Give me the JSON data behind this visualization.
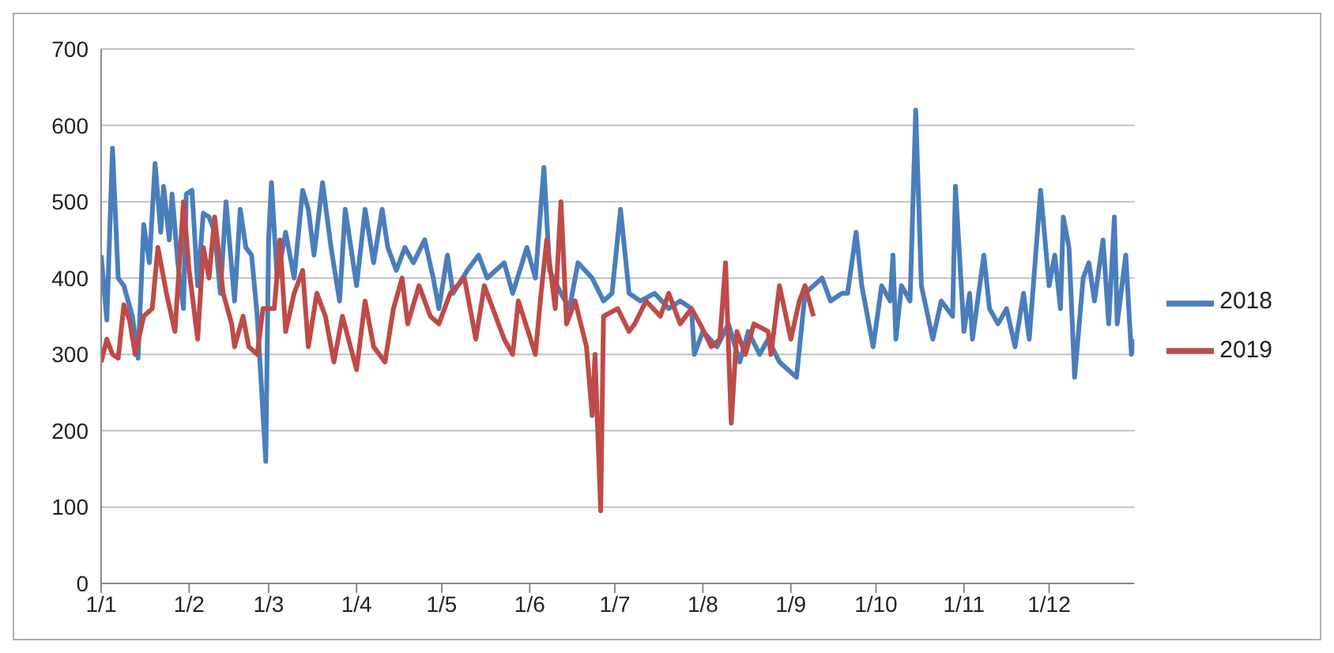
{
  "chart_data": {
    "type": "line",
    "legend": "right",
    "grid": "y",
    "marker": "none",
    "line_style": "solid",
    "ylim": [
      0,
      700
    ],
    "yticks": [
      0,
      100,
      200,
      300,
      400,
      500,
      600,
      700
    ],
    "xlim": [
      "--01-01",
      "--12-31"
    ],
    "xticks": [
      {
        "value": "--01-01",
        "label": "1/1"
      },
      {
        "value": "--02-01",
        "label": "1/2"
      },
      {
        "value": "--03-01",
        "label": "1/3"
      },
      {
        "value": "--04-01",
        "label": "1/4"
      },
      {
        "value": "--05-01",
        "label": "1/5"
      },
      {
        "value": "--06-01",
        "label": "1/6"
      },
      {
        "value": "--07-01",
        "label": "1/7"
      },
      {
        "value": "--08-01",
        "label": "1/8"
      },
      {
        "value": "--09-01",
        "label": "1/9"
      },
      {
        "value": "--10-01",
        "label": "1/10"
      },
      {
        "value": "--11-01",
        "label": "1/11"
      },
      {
        "value": "--12-01",
        "label": "1/12"
      }
    ],
    "series": [
      {
        "name": "2018",
        "color": "#4a7ebb",
        "x": [
          "--01-01",
          "--01-03",
          "--01-05",
          "--01-07",
          "--01-09",
          "--01-12",
          "--01-14",
          "--01-16",
          "--01-18",
          "--01-20",
          "--01-22",
          "--01-23",
          "--01-25",
          "--01-26",
          "--01-28",
          "--01-30",
          "--01-31",
          "--02-02",
          "--02-04",
          "--02-06",
          "--02-08",
          "--02-10",
          "--02-12",
          "--02-14",
          "--02-17",
          "--02-19",
          "--02-21",
          "--02-23",
          "--02-25",
          "--02-28",
          "--03-01",
          "--03-02",
          "--03-04",
          "--03-07",
          "--03-10",
          "--03-13",
          "--03-15",
          "--03-17",
          "--03-20",
          "--03-23",
          "--03-26",
          "--03-28",
          "--04-01",
          "--04-04",
          "--04-07",
          "--04-10",
          "--04-12",
          "--04-15",
          "--04-18",
          "--04-21",
          "--04-25",
          "--04-28",
          "--04-30",
          "--05-03",
          "--05-05",
          "--05-10",
          "--05-14",
          "--05-17",
          "--05-23",
          "--05-26",
          "--05-31",
          "--06-03",
          "--06-06",
          "--06-08",
          "--06-12",
          "--06-15",
          "--06-18",
          "--06-23",
          "--06-27",
          "--06-30",
          "--07-03",
          "--07-06",
          "--07-10",
          "--07-15",
          "--07-20",
          "--07-24",
          "--07-28",
          "--07-29",
          "--08-01",
          "--08-06",
          "--08-10",
          "--08-14",
          "--08-17",
          "--08-21",
          "--08-24",
          "--08-28",
          "--09-03",
          "--09-06",
          "--09-12",
          "--09-15",
          "--09-19",
          "--09-21",
          "--09-24",
          "--09-26",
          "--09-30",
          "--10-03",
          "--10-06",
          "--10-07",
          "--10-08",
          "--10-10",
          "--10-13",
          "--10-15",
          "--10-17",
          "--10-21",
          "--10-24",
          "--10-28",
          "--10-29",
          "--11-01",
          "--11-03",
          "--11-04",
          "--11-08",
          "--11-10",
          "--11-13",
          "--11-16",
          "--11-19",
          "--11-22",
          "--11-24",
          "--11-28",
          "--12-01",
          "--12-03",
          "--12-05",
          "--12-06",
          "--12-08",
          "--12-10",
          "--12-13",
          "--12-15",
          "--12-17",
          "--12-20",
          "--12-22",
          "--12-24",
          "--12-25",
          "--12-28",
          "--12-30",
          "--12-31"
        ],
        "values": [
          430,
          345,
          570,
          400,
          390,
          350,
          295,
          470,
          420,
          550,
          460,
          520,
          450,
          510,
          420,
          360,
          510,
          515,
          390,
          485,
          480,
          460,
          380,
          500,
          370,
          490,
          440,
          430,
          350,
          160,
          450,
          525,
          400,
          460,
          400,
          515,
          490,
          430,
          525,
          440,
          370,
          490,
          390,
          490,
          420,
          490,
          440,
          410,
          440,
          420,
          450,
          400,
          360,
          430,
          380,
          410,
          430,
          400,
          420,
          380,
          440,
          400,
          545,
          410,
          380,
          360,
          420,
          400,
          370,
          380,
          490,
          380,
          370,
          380,
          360,
          370,
          360,
          300,
          330,
          310,
          340,
          290,
          330,
          300,
          320,
          290,
          270,
          380,
          400,
          370,
          380,
          380,
          460,
          390,
          310,
          390,
          370,
          430,
          320,
          390,
          370,
          620,
          390,
          320,
          370,
          350,
          520,
          330,
          380,
          320,
          430,
          360,
          340,
          360,
          310,
          380,
          320,
          515,
          390,
          430,
          360,
          480,
          440,
          270,
          400,
          420,
          370,
          450,
          340,
          480,
          340,
          430,
          300,
          320
        ]
      },
      {
        "name": "2019",
        "color": "#be4b48",
        "x": [
          "--01-01",
          "--01-03",
          "--01-05",
          "--01-07",
          "--01-09",
          "--01-11",
          "--01-13",
          "--01-16",
          "--01-19",
          "--01-21",
          "--01-24",
          "--01-27",
          "--01-30",
          "--02-01",
          "--02-04",
          "--02-06",
          "--02-08",
          "--02-10",
          "--02-13",
          "--02-16",
          "--02-17",
          "--02-20",
          "--02-22",
          "--02-25",
          "--02-27",
          "--03-03",
          "--03-05",
          "--03-07",
          "--03-10",
          "--03-13",
          "--03-15",
          "--03-18",
          "--03-21",
          "--03-24",
          "--03-27",
          "--04-01",
          "--04-04",
          "--04-07",
          "--04-11",
          "--04-14",
          "--04-17",
          "--04-19",
          "--04-23",
          "--04-27",
          "--04-30",
          "--05-04",
          "--05-09",
          "--05-13",
          "--05-16",
          "--05-20",
          "--05-23",
          "--05-26",
          "--05-28",
          "--06-03",
          "--06-05",
          "--06-07",
          "--06-10",
          "--06-12",
          "--06-14",
          "--06-17",
          "--06-21",
          "--06-23",
          "--06-24",
          "--06-26",
          "--06-27",
          "--07-02",
          "--07-06",
          "--07-08",
          "--07-12",
          "--07-17",
          "--07-20",
          "--07-24",
          "--07-28",
          "--07-31",
          "--08-04",
          "--08-07",
          "--08-09",
          "--08-11",
          "--08-13",
          "--08-16",
          "--08-19",
          "--08-24",
          "--08-25",
          "--08-28",
          "--09-01",
          "--09-04",
          "--09-06",
          "--09-09"
        ],
        "values": [
          290,
          320,
          300,
          295,
          365,
          345,
          300,
          350,
          360,
          440,
          380,
          330,
          500,
          410,
          320,
          440,
          400,
          480,
          380,
          340,
          310,
          350,
          310,
          300,
          360,
          360,
          450,
          330,
          380,
          410,
          310,
          380,
          350,
          290,
          350,
          280,
          370,
          310,
          290,
          360,
          400,
          340,
          390,
          350,
          340,
          380,
          400,
          320,
          390,
          350,
          320,
          300,
          370,
          300,
          380,
          450,
          360,
          500,
          340,
          370,
          310,
          220,
          300,
          95,
          350,
          360,
          330,
          340,
          370,
          350,
          380,
          340,
          360,
          340,
          310,
          320,
          420,
          210,
          330,
          300,
          340,
          330,
          300,
          390,
          320,
          370,
          390,
          350
        ]
      }
    ]
  }
}
